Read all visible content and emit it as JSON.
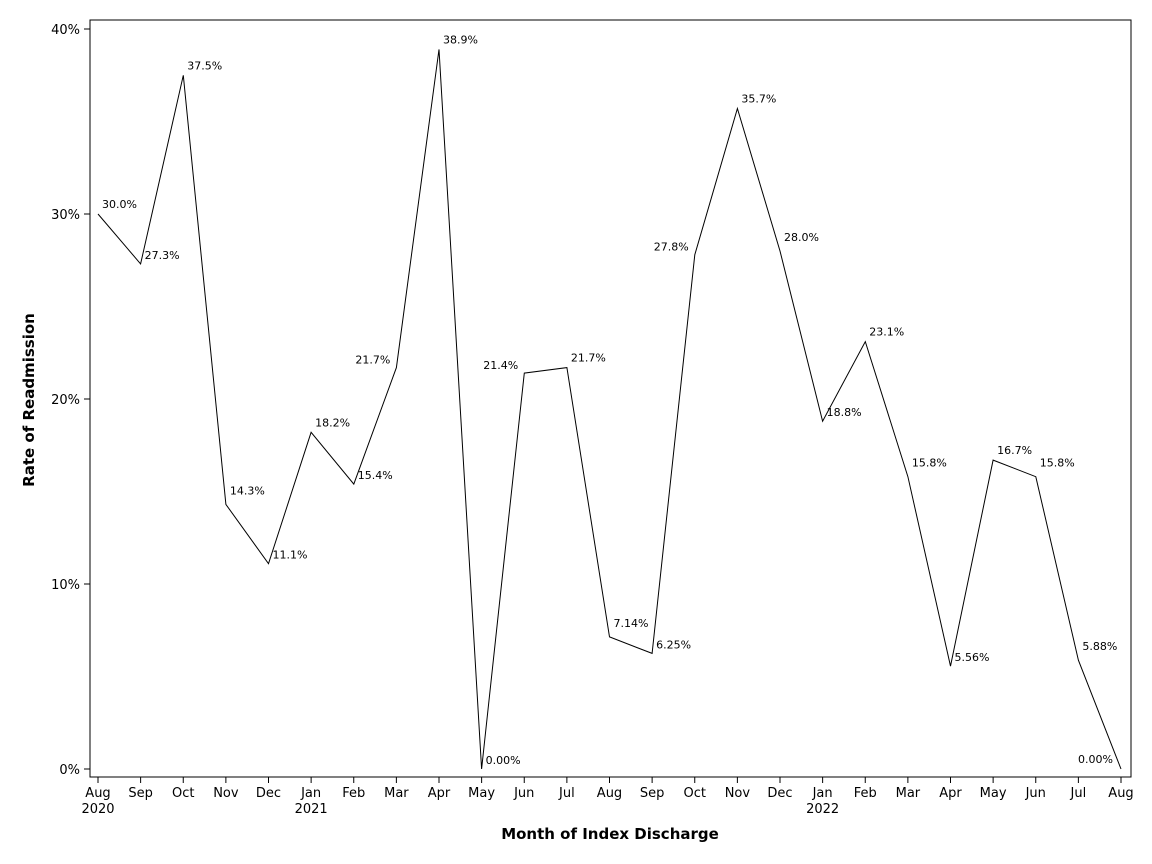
{
  "chart_data": {
    "type": "line",
    "title": "",
    "xlabel": "Month of Index Discharge",
    "ylabel": "Rate of Readmission",
    "ylim": [
      0,
      40
    ],
    "yticks": [
      0,
      10,
      20,
      30,
      40
    ],
    "ytick_labels": [
      "0%",
      "10%",
      "20%",
      "30%",
      "40%"
    ],
    "grid": false,
    "legend": "none",
    "line_color": "#000000",
    "categories": [
      "Aug",
      "Sep",
      "Oct",
      "Nov",
      "Dec",
      "Jan",
      "Feb",
      "Mar",
      "Apr",
      "May",
      "Jun",
      "Jul",
      "Aug",
      "Sep",
      "Oct",
      "Nov",
      "Dec",
      "Jan",
      "Feb",
      "Mar",
      "Apr",
      "May",
      "Jun",
      "Jul",
      "Aug"
    ],
    "year_labels": [
      "2020",
      "",
      "",
      "",
      "",
      "2021",
      "",
      "",
      "",
      "",
      "",
      "",
      "",
      "",
      "",
      "",
      "",
      "2022",
      "",
      "",
      "",
      "",
      "",
      "",
      ""
    ],
    "series": [
      {
        "values": [
          30.0,
          27.3,
          37.5,
          14.3,
          11.1,
          18.2,
          15.4,
          21.7,
          38.9,
          0.0,
          21.4,
          21.7,
          7.14,
          6.25,
          27.8,
          35.7,
          28.0,
          18.8,
          23.1,
          15.8,
          5.56,
          16.7,
          15.8,
          5.88,
          0.0
        ],
        "data_labels": [
          "30.0%",
          "27.3%",
          "37.5%",
          "14.3%",
          "11.1%",
          "18.2%",
          "15.4%",
          "21.7%",
          "38.9%",
          "0.00%",
          "21.4%",
          "21.7%",
          "7.14%",
          "6.25%",
          "27.8%",
          "35.7%",
          "28.0%",
          "18.8%",
          "23.1%",
          "15.8%",
          "5.56%",
          "16.7%",
          "15.8%",
          "5.88%",
          "0.00%"
        ]
      }
    ]
  }
}
